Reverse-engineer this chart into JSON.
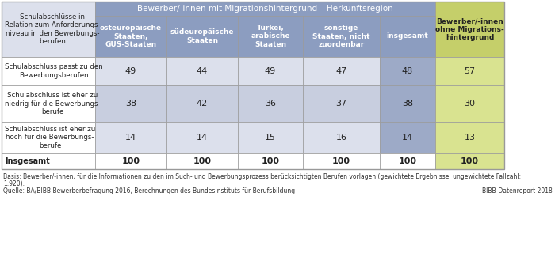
{
  "title_main": "Bewerber/-innen mit Migrationshintergrund – Herkunftsregion",
  "col_header_left": "Schulabschlüsse in\nRelation zum Anforderungs-\nniveau in den Bewerbungs-\nberufen",
  "col_headers": [
    "osteuropäische\nStaaten,\nGUS-Staaten",
    "südeuropäische\nStaaten",
    "Türkei,\narabische\nStaaten",
    "sonstige\nStaaten, nicht\nzuordenbar",
    "insgesamt",
    "Bewerber/-innen\nohne Migrations-\nhintergrund"
  ],
  "row_labels": [
    "Schulabschluss passt zu den\nBewerbungsberufen",
    "Schulabschluss ist eher zu\nniedrig für die Bewerbungs-\nberufe",
    "Schulabschluss ist eher zu\nhoch für die Bewerbungs-\nberufe",
    "Insgesamt"
  ],
  "data": [
    [
      49,
      44,
      49,
      47,
      48,
      57
    ],
    [
      38,
      42,
      36,
      37,
      38,
      30
    ],
    [
      14,
      14,
      15,
      16,
      14,
      13
    ],
    [
      100,
      100,
      100,
      100,
      100,
      100
    ]
  ],
  "footnote1": "Basis: Bewerber/-innen, für die Informationen zu den im Such- und Bewerbungsprozess berücksichtigten Berufen vorlagen (gewichtete Ergebnisse, ungewichtete Fallzahl:",
  "footnote2": "1.920).",
  "footnote3": "Quelle: BA/BIBB-Bewerberbefragung 2016, Berechnungen des Bundesinstituts für Berufsbildung",
  "footnote_right": "BIBB-Datenreport 2018",
  "color_header_blue": "#8c9dc0",
  "color_cell_blue_dark": "#9daac7",
  "color_cell_blue_light": "#c8cedf",
  "color_cell_blue_lighter": "#dce0ec",
  "color_header_green": "#c5cf6a",
  "color_cell_green": "#d9e390",
  "color_insgesamt_row": "#e8eaf0",
  "color_white": "#ffffff",
  "color_border": "#999999"
}
